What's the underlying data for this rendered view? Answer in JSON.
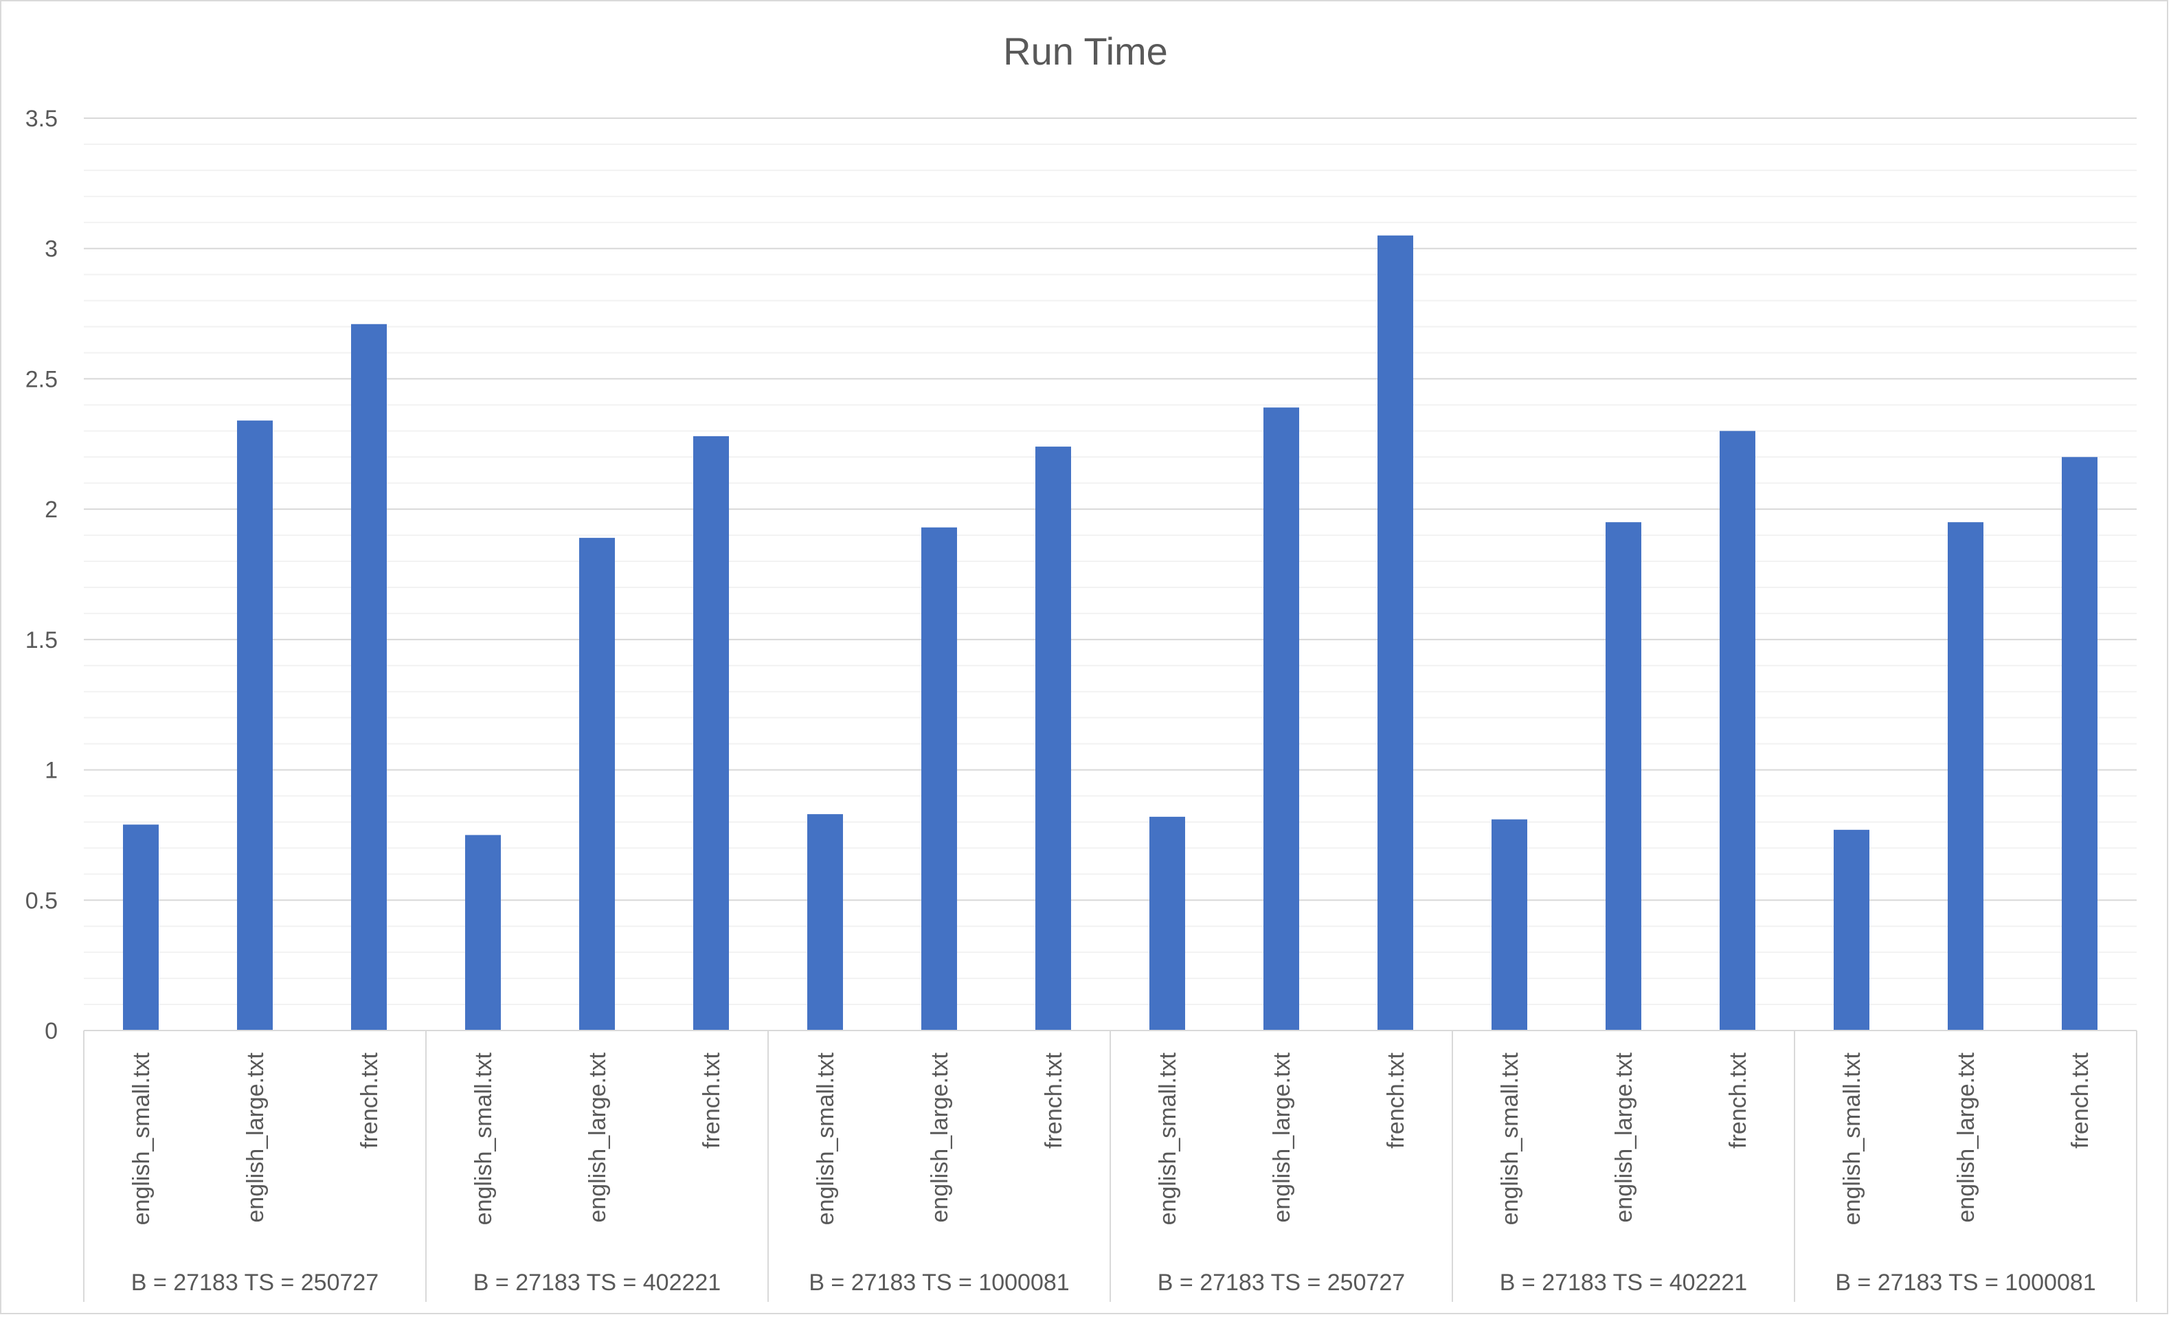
{
  "chart_data": {
    "type": "bar",
    "title": "Run Time",
    "xlabel": "",
    "ylabel": "",
    "ylim": [
      0,
      3.5
    ],
    "yticks": [
      "0",
      "0.5",
      "1",
      "1.5",
      "2",
      "2.5",
      "3",
      "3.5"
    ],
    "minor_step": 0.1,
    "grid": true,
    "legend": "none",
    "bar_color": "#4472c4",
    "groups": [
      "B = 27183 TS = 250727",
      "B = 27183 TS = 402221",
      "B = 27183 TS = 1000081",
      "B = 27183 TS = 250727",
      "B = 27183 TS = 402221",
      "B = 27183 TS = 1000081"
    ],
    "categories": [
      "english_small.txt",
      "english_large.txt",
      "french.txt"
    ],
    "values": [
      [
        0.79,
        2.34,
        2.71
      ],
      [
        0.75,
        1.89,
        2.28
      ],
      [
        0.83,
        1.93,
        2.24
      ],
      [
        0.82,
        2.39,
        3.05
      ],
      [
        0.81,
        1.95,
        2.3
      ],
      [
        0.77,
        1.95,
        2.2
      ]
    ]
  }
}
